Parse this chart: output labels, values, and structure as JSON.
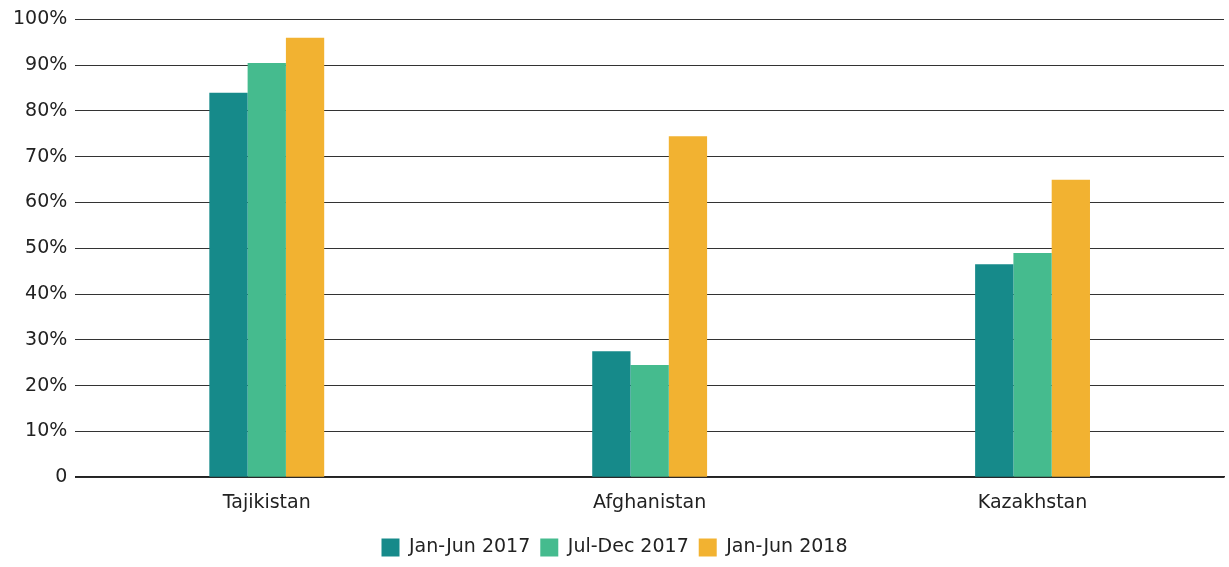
{
  "chart_data": {
    "type": "bar",
    "categories": [
      "Tajikistan",
      "Afghanistan",
      "Kazakhstan"
    ],
    "series": [
      {
        "name": "Jan-Jun 2017",
        "color": "#168a8a",
        "values": [
          84,
          27.5,
          46.5
        ]
      },
      {
        "name": "Jul-Dec 2017",
        "color": "#45bb8e",
        "values": [
          90.5,
          24.5,
          49
        ]
      },
      {
        "name": "Jan-Jun 2018",
        "color": "#f2b231",
        "values": [
          96,
          74.5,
          65
        ]
      }
    ],
    "ylim": [
      0,
      100
    ],
    "yticks": [
      0,
      {
        "value": 10,
        "label": "10%"
      },
      {
        "value": 20,
        "label": "20%"
      },
      {
        "value": 30,
        "label": "30%"
      },
      {
        "value": 40,
        "label": "40%"
      },
      {
        "value": 50,
        "label": "50%"
      },
      {
        "value": 60,
        "label": "60%"
      },
      {
        "value": 70,
        "label": "70%"
      },
      {
        "value": 80,
        "label": "80%"
      },
      {
        "value": 90,
        "label": "90%"
      },
      {
        "value": 100,
        "label": "100%"
      }
    ],
    "grid": "y",
    "legend": "bottom"
  }
}
